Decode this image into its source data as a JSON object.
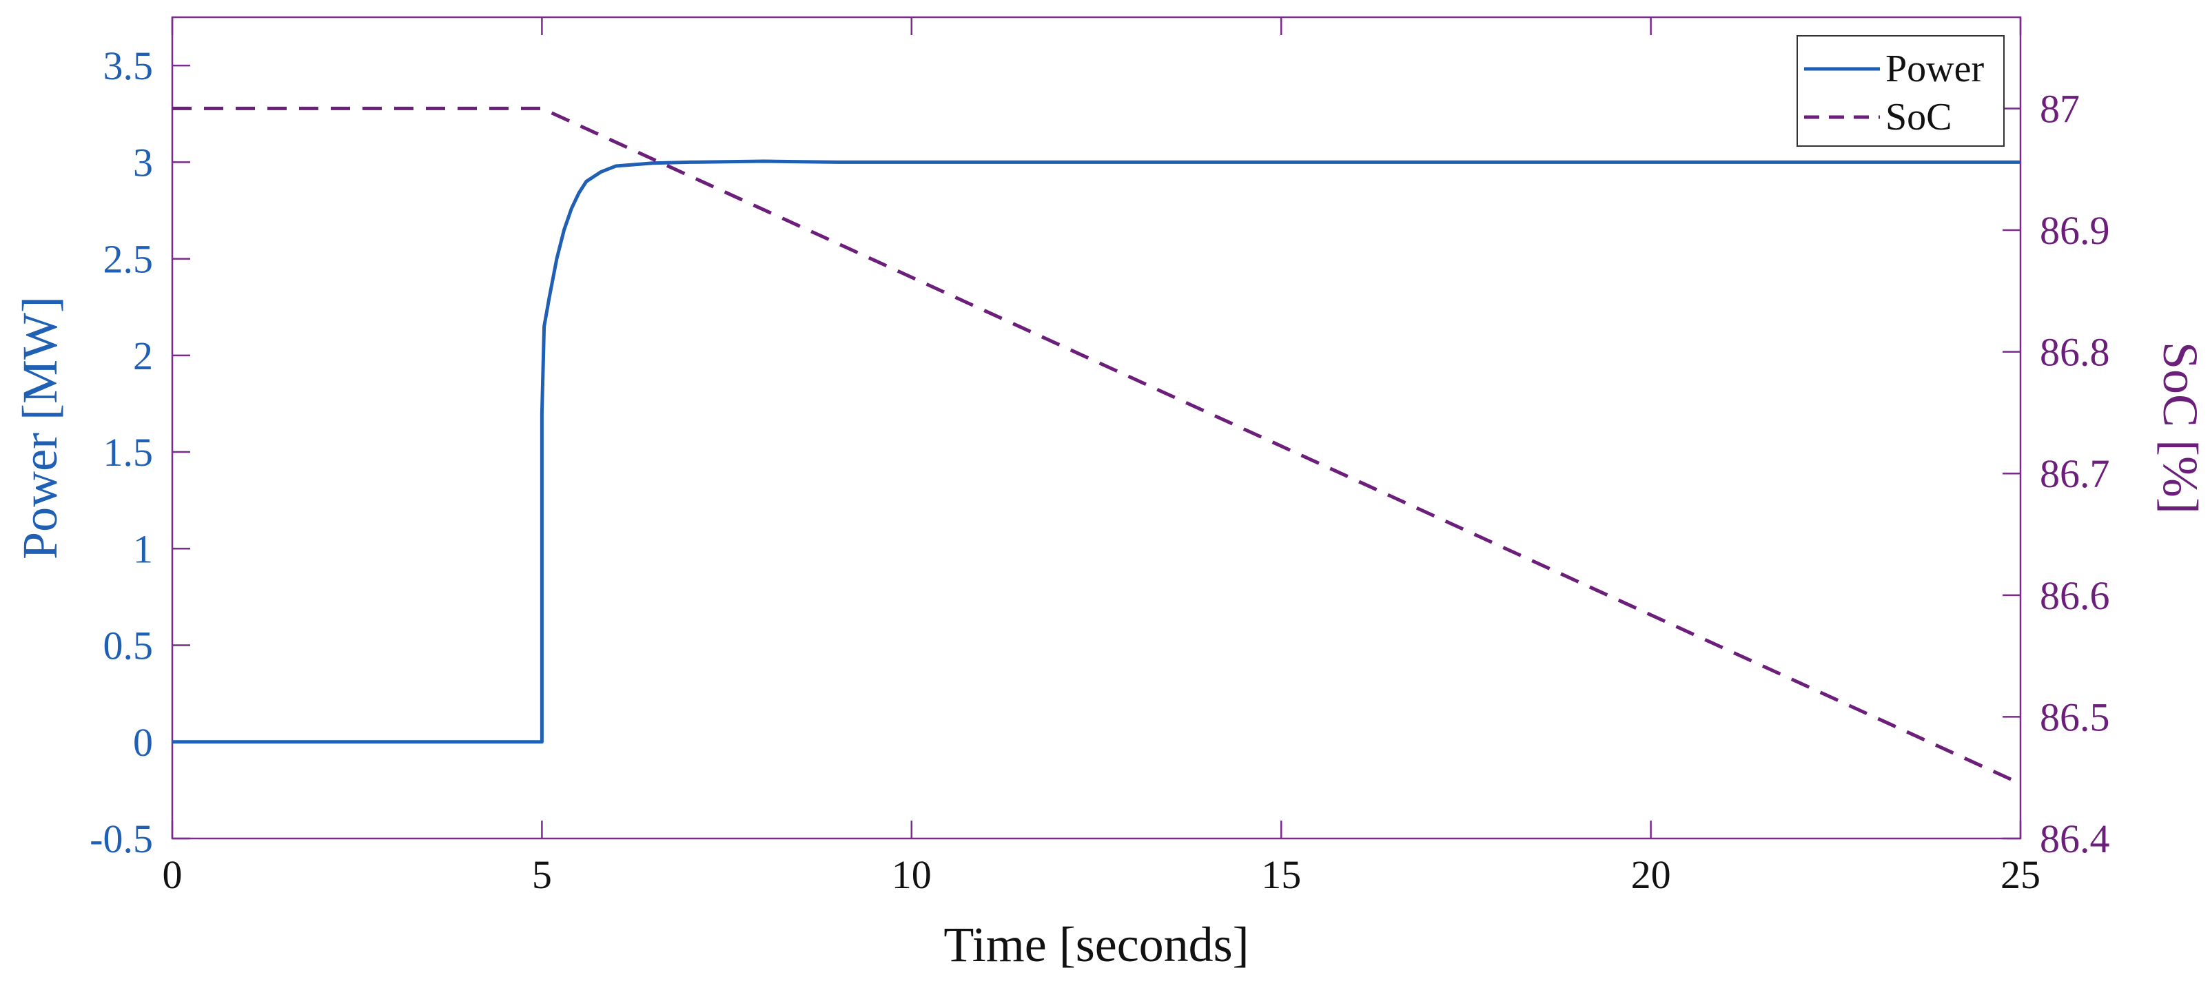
{
  "chart_data": {
    "type": "line",
    "title": "",
    "xlabel": "Time [seconds]",
    "ylabel_left": "Power [MW]",
    "ylabel_right": "SoC [%]",
    "xlim": [
      0,
      25
    ],
    "ylim_left": [
      -0.5,
      3.75
    ],
    "ylim_right": [
      86.4,
      87.075
    ],
    "x_ticks": [
      0,
      5,
      10,
      15,
      20,
      25
    ],
    "x_tick_labels": [
      "0",
      "5",
      "10",
      "15",
      "20",
      "25"
    ],
    "y_left_ticks": [
      -0.5,
      0,
      0.5,
      1,
      1.5,
      2,
      2.5,
      3,
      3.5
    ],
    "y_left_tick_labels": [
      "-0.5",
      "0",
      "0.5",
      "1",
      "1.5",
      "2",
      "2.5",
      "3",
      "3.5"
    ],
    "y_right_ticks": [
      86.4,
      86.5,
      86.6,
      86.7,
      86.8,
      86.9,
      87
    ],
    "y_right_tick_labels": [
      "86.4",
      "86.5",
      "86.6",
      "86.7",
      "86.8",
      "86.9",
      "87"
    ],
    "grid": false,
    "legend_position": "top-right",
    "series": [
      {
        "name": "Power",
        "axis": "left",
        "style": "solid",
        "color": "#1f5fb4",
        "points": [
          [
            0,
            0
          ],
          [
            5,
            0
          ],
          [
            5.0,
            1.7
          ],
          [
            5.03,
            2.15
          ],
          [
            5.1,
            2.3
          ],
          [
            5.2,
            2.5
          ],
          [
            5.3,
            2.65
          ],
          [
            5.4,
            2.76
          ],
          [
            5.5,
            2.84
          ],
          [
            5.6,
            2.9
          ],
          [
            5.8,
            2.95
          ],
          [
            6.0,
            2.98
          ],
          [
            6.5,
            2.995
          ],
          [
            7.0,
            3.0
          ],
          [
            8.0,
            3.005
          ],
          [
            9.0,
            3.0
          ],
          [
            12.0,
            3.0
          ],
          [
            15.0,
            3.0
          ],
          [
            20.0,
            3.0
          ],
          [
            25.0,
            3.0
          ]
        ]
      },
      {
        "name": "SoC",
        "axis": "right",
        "style": "dashed",
        "color": "#6b1f7a",
        "points": [
          [
            0,
            87.0
          ],
          [
            5,
            87.0
          ],
          [
            25,
            86.445
          ]
        ]
      }
    ]
  }
}
